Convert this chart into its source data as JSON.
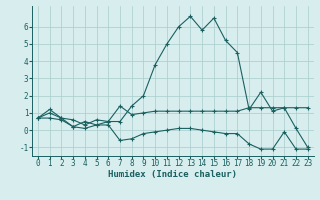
{
  "background_color": "#d8eeee",
  "grid_color": "#a8cccc",
  "line_color": "#1a6060",
  "xlabel": "Humidex (Indice chaleur)",
  "ylim": [
    -1.5,
    7.2
  ],
  "xlim": [
    -0.5,
    23.5
  ],
  "yticks": [
    -1,
    0,
    1,
    2,
    3,
    4,
    5,
    6
  ],
  "xticks": [
    0,
    1,
    2,
    3,
    4,
    5,
    6,
    7,
    8,
    9,
    10,
    11,
    12,
    13,
    14,
    15,
    16,
    17,
    18,
    19,
    20,
    21,
    22,
    23
  ],
  "series": [
    [
      0.7,
      1.2,
      0.7,
      0.2,
      0.5,
      0.3,
      0.5,
      0.5,
      1.4,
      2.0,
      3.8,
      5.0,
      6.0,
      6.6,
      5.8,
      6.5,
      5.2,
      4.5,
      1.2,
      2.2,
      1.1,
      1.3,
      0.1,
      -1.0
    ],
    [
      0.7,
      1.0,
      0.7,
      0.6,
      0.3,
      0.6,
      0.5,
      1.4,
      0.9,
      1.0,
      1.1,
      1.1,
      1.1,
      1.1,
      1.1,
      1.1,
      1.1,
      1.1,
      1.3,
      1.3,
      1.3,
      1.3,
      1.3,
      1.3
    ],
    [
      0.7,
      0.7,
      0.6,
      0.2,
      0.1,
      0.3,
      0.3,
      -0.6,
      -0.5,
      -0.2,
      -0.1,
      0.0,
      0.1,
      0.1,
      0.0,
      -0.1,
      -0.2,
      -0.2,
      -0.8,
      -1.1,
      -1.1,
      -0.1,
      -1.1,
      -1.1
    ]
  ],
  "figsize": [
    3.2,
    2.0
  ],
  "dpi": 100,
  "xlabel_fontsize": 6.5,
  "tick_fontsize": 5.5,
  "linewidth": 0.8,
  "markersize": 3.0
}
